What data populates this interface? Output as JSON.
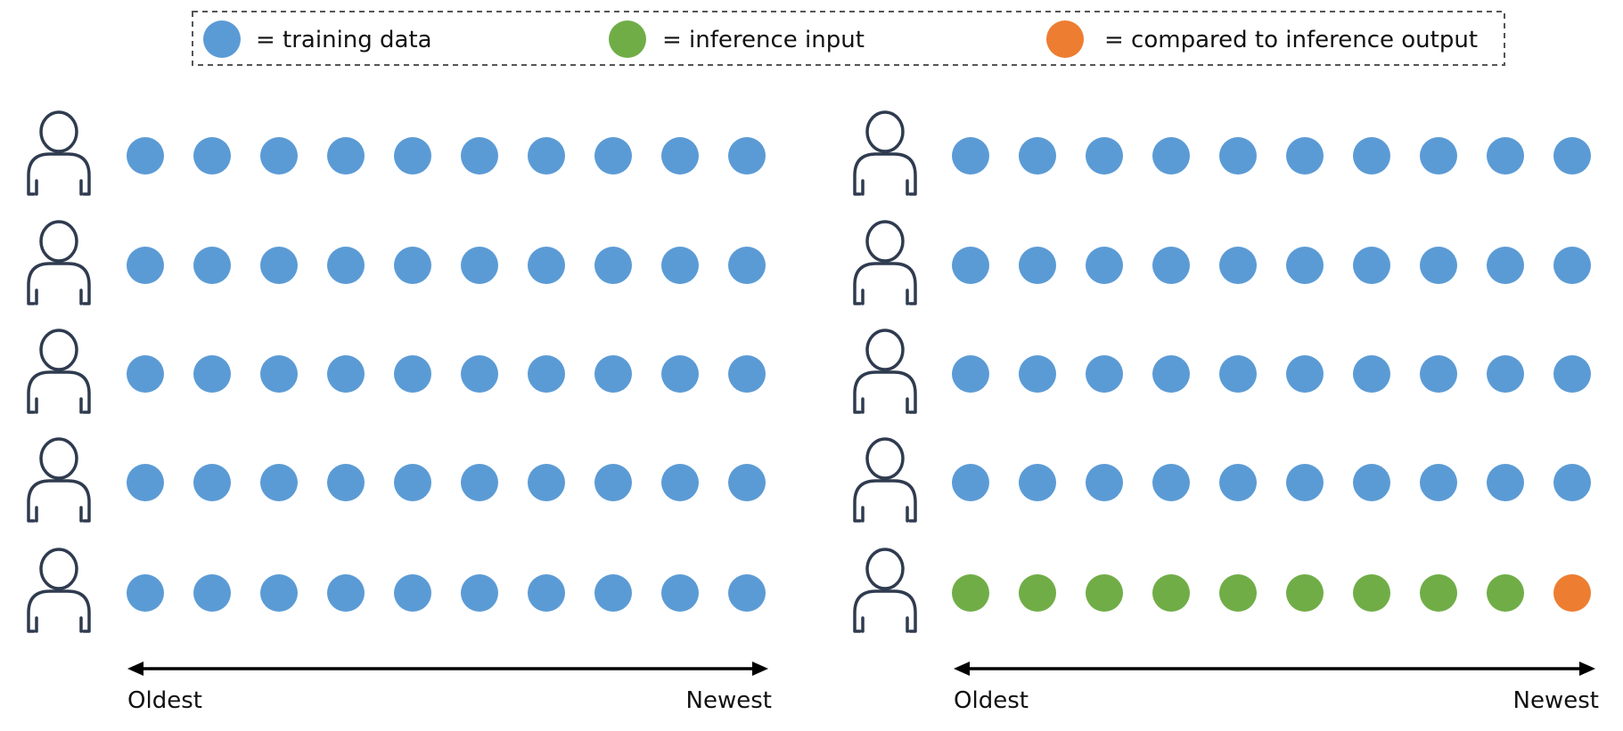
{
  "legend": {
    "items": [
      {
        "key": "training",
        "label": "= training data",
        "color": "#5B9BD5"
      },
      {
        "key": "inference",
        "label": "= inference input",
        "color": "#70AD47"
      },
      {
        "key": "compared",
        "label": "= compared to inference output",
        "color": "#ED7D31"
      }
    ]
  },
  "panels": [
    {
      "name": "training",
      "axis": {
        "start_label": "Oldest",
        "end_label": "Newest"
      },
      "rows": [
        [
          "training",
          "training",
          "training",
          "training",
          "training",
          "training",
          "training",
          "training",
          "training",
          "training"
        ],
        [
          "training",
          "training",
          "training",
          "training",
          "training",
          "training",
          "training",
          "training",
          "training",
          "training"
        ],
        [
          "training",
          "training",
          "training",
          "training",
          "training",
          "training",
          "training",
          "training",
          "training",
          "training"
        ],
        [
          "training",
          "training",
          "training",
          "training",
          "training",
          "training",
          "training",
          "training",
          "training",
          "training"
        ],
        [
          "training",
          "training",
          "training",
          "training",
          "training",
          "training",
          "training",
          "training",
          "training",
          "training"
        ]
      ]
    },
    {
      "name": "inference",
      "axis": {
        "start_label": "Oldest",
        "end_label": "Newest"
      },
      "rows": [
        [
          "training",
          "training",
          "training",
          "training",
          "training",
          "training",
          "training",
          "training",
          "training",
          "training"
        ],
        [
          "training",
          "training",
          "training",
          "training",
          "training",
          "training",
          "training",
          "training",
          "training",
          "training"
        ],
        [
          "training",
          "training",
          "training",
          "training",
          "training",
          "training",
          "training",
          "training",
          "training",
          "training"
        ],
        [
          "training",
          "training",
          "training",
          "training",
          "training",
          "training",
          "training",
          "training",
          "training",
          "training"
        ],
        [
          "inference",
          "inference",
          "inference",
          "inference",
          "inference",
          "inference",
          "inference",
          "inference",
          "inference",
          "compared"
        ]
      ]
    }
  ],
  "colors": {
    "person_stroke": "#2F3B4F",
    "legend_border": "#555555",
    "axis": "#000000"
  }
}
